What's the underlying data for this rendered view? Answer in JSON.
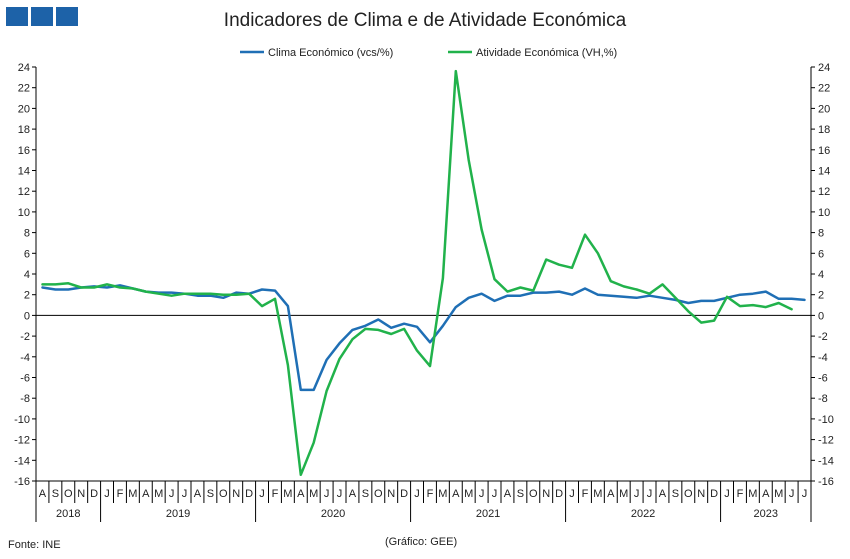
{
  "title": "Indicadores de Clima e de Atividade Económica",
  "source": "Fonte: INE",
  "credit": "(Gráfico: GEE)",
  "colors": {
    "clima": "#1f6fb5",
    "atividade": "#21b24b",
    "logo": "#1d62a8"
  },
  "chart_data": {
    "type": "line",
    "title": "Indicadores de Clima e de Atividade Económica",
    "legend_position": "top-center",
    "ylim": [
      -16,
      24
    ],
    "yticks": [
      -16,
      -14,
      -12,
      -10,
      -8,
      -6,
      -4,
      -2,
      0,
      2,
      4,
      6,
      8,
      10,
      12,
      14,
      16,
      18,
      20,
      22,
      24
    ],
    "y2ticks": [
      -16,
      -14,
      -12,
      -10,
      -8,
      -6,
      -4,
      -2,
      0,
      2,
      4,
      6,
      8,
      10,
      12,
      14,
      16,
      18,
      20,
      22,
      24
    ],
    "month_labels": [
      "A",
      "S",
      "O",
      "N",
      "D",
      "J",
      "F",
      "M",
      "A",
      "M",
      "J",
      "J",
      "A",
      "S",
      "O",
      "N",
      "D",
      "J",
      "F",
      "M",
      "A",
      "M",
      "J",
      "J",
      "A",
      "S",
      "O",
      "N",
      "D",
      "J",
      "F",
      "M",
      "A",
      "M",
      "J",
      "J",
      "A",
      "S",
      "O",
      "N",
      "D",
      "J",
      "F",
      "M",
      "A",
      "M",
      "J",
      "J",
      "A",
      "S",
      "O",
      "N",
      "D",
      "J",
      "F",
      "M",
      "A",
      "M",
      "J",
      "J"
    ],
    "years": [
      {
        "label": "2018",
        "start": 0,
        "count": 5
      },
      {
        "label": "2019",
        "start": 5,
        "count": 12
      },
      {
        "label": "2020",
        "start": 17,
        "count": 12
      },
      {
        "label": "2021",
        "start": 29,
        "count": 12
      },
      {
        "label": "2022",
        "start": 41,
        "count": 12
      },
      {
        "label": "2023",
        "start": 53,
        "count": 7
      }
    ],
    "series": [
      {
        "name": "Clima Económico (vcs/%)",
        "color": "#1f6fb5",
        "values": [
          2.7,
          2.5,
          2.5,
          2.7,
          2.8,
          2.7,
          2.9,
          2.6,
          2.3,
          2.2,
          2.2,
          2.1,
          1.9,
          1.9,
          1.7,
          2.2,
          2.1,
          2.5,
          2.4,
          0.9,
          -7.2,
          -7.2,
          -4.3,
          -2.7,
          -1.4,
          -1.0,
          -0.4,
          -1.2,
          -0.8,
          -1.1,
          -2.6,
          -1.0,
          0.8,
          1.7,
          2.1,
          1.4,
          1.9,
          1.9,
          2.2,
          2.2,
          2.3,
          2.0,
          2.6,
          2.0,
          1.9,
          1.8,
          1.7,
          1.9,
          1.7,
          1.5,
          1.2,
          1.4,
          1.4,
          1.7,
          2.0,
          2.1,
          2.3,
          1.6,
          1.6,
          1.5
        ]
      },
      {
        "name": "Atividade Económica (VH,%)",
        "color": "#21b24b",
        "values": [
          3.0,
          3.0,
          3.1,
          2.7,
          2.7,
          3.0,
          2.7,
          2.6,
          2.3,
          2.1,
          1.9,
          2.1,
          2.1,
          2.1,
          2.0,
          2.0,
          2.1,
          0.9,
          1.6,
          -4.8,
          -15.4,
          -12.3,
          -7.3,
          -4.2,
          -2.3,
          -1.3,
          -1.4,
          -1.8,
          -1.3,
          -3.4,
          -4.9,
          3.6,
          23.6,
          15.0,
          8.3,
          3.5,
          2.3,
          2.7,
          2.4,
          5.4,
          4.9,
          4.6,
          7.8,
          6.0,
          3.3,
          2.8,
          2.5,
          2.1,
          3.0,
          1.7,
          0.4,
          -0.7,
          -0.5,
          1.8,
          0.9,
          1.0,
          0.8,
          1.2,
          0.6
        ]
      }
    ]
  }
}
